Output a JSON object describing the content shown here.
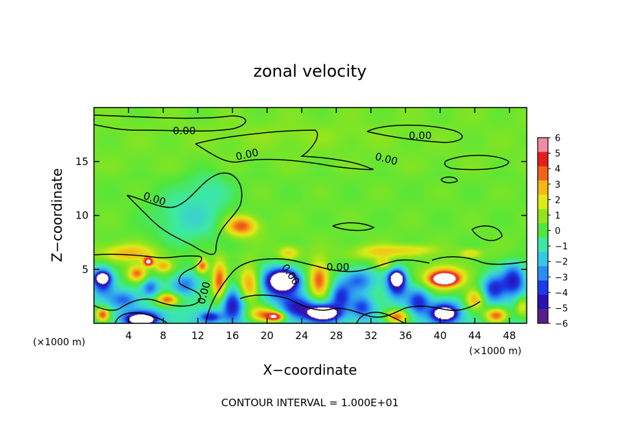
{
  "chart_data": {
    "type": "heatmap",
    "title": "zonal velocity",
    "xlabel": "X−coordinate",
    "ylabel": "Z−coordinate",
    "x_unit_left": "(×1000 m)",
    "x_unit_right": "(×1000 m)",
    "footer": "CONTOUR INTERVAL = 1.000E+01",
    "xlim": [
      0,
      50
    ],
    "ylim": [
      0,
      20
    ],
    "x_ticks": [
      4,
      8,
      12,
      16,
      20,
      24,
      28,
      32,
      36,
      40,
      44,
      48
    ],
    "y_ticks": [
      5,
      10,
      15
    ],
    "colorbar": {
      "min": -6,
      "max": 6,
      "ticks": [
        6,
        5,
        4,
        3,
        2,
        1,
        0,
        -1,
        -2,
        -3,
        -4,
        -5,
        -6
      ],
      "colors": [
        "#5a1e8c",
        "#2a12b4",
        "#1a3ce8",
        "#2a8ef0",
        "#38c6e6",
        "#3ce8a6",
        "#50e63c",
        "#8ee41e",
        "#dcea1a",
        "#f6b814",
        "#f0641a",
        "#e81e1e",
        "#f08ca0"
      ]
    },
    "contour_label": "0.00",
    "regions_note": "",
    "blobs": [
      {
        "x": 23,
        "y": 17.4,
        "rx": 14,
        "ry": 1.3,
        "v": 0.6
      },
      {
        "x": 14,
        "y": 18.6,
        "rx": 10,
        "ry": 0.8,
        "v": 0.2
      },
      {
        "x": 11,
        "y": 9.8,
        "rx": 5,
        "ry": 3.2,
        "v": -1.6
      },
      {
        "x": 13.5,
        "y": 12.5,
        "rx": 3,
        "ry": 2,
        "v": -0.8
      },
      {
        "x": 17,
        "y": 9.0,
        "rx": 2.2,
        "ry": 1.1,
        "v": 4.2
      },
      {
        "x": 4,
        "y": 6.5,
        "rx": 4,
        "ry": 1,
        "v": 2.8
      },
      {
        "x": 6.3,
        "y": 5.7,
        "rx": 0.7,
        "ry": 0.5,
        "v": 6
      },
      {
        "x": 1,
        "y": 4.0,
        "rx": 1.5,
        "ry": 1.5,
        "v": -4.6
      },
      {
        "x": 1,
        "y": 4.2,
        "rx": 0.8,
        "ry": 0.5,
        "v": -6
      },
      {
        "x": 5,
        "y": 4.6,
        "rx": 1.3,
        "ry": 0.9,
        "v": 4.5
      },
      {
        "x": 8,
        "y": 5.3,
        "rx": 1.2,
        "ry": 0.7,
        "v": 3.2
      },
      {
        "x": 6.5,
        "y": 3.3,
        "rx": 1.2,
        "ry": 1.0,
        "v": -2.8
      },
      {
        "x": 3.5,
        "y": 2.2,
        "rx": 2.0,
        "ry": 1.0,
        "v": -2.5
      },
      {
        "x": 8.5,
        "y": 2.2,
        "rx": 1.6,
        "ry": 0.7,
        "v": 5.2
      },
      {
        "x": 1,
        "y": 0.8,
        "rx": 1.0,
        "ry": 0.8,
        "v": 5.5
      },
      {
        "x": 5.5,
        "y": 0.5,
        "rx": 2.4,
        "ry": 0.8,
        "v": -5
      },
      {
        "x": 5.5,
        "y": 0.3,
        "rx": 1.4,
        "ry": 0.4,
        "v": -6
      },
      {
        "x": 10.5,
        "y": 3.6,
        "rx": 1.8,
        "ry": 1.2,
        "v": -2.6
      },
      {
        "x": 12.5,
        "y": 5.3,
        "rx": 0.8,
        "ry": 0.8,
        "v": 4.5
      },
      {
        "x": 14.5,
        "y": 3.8,
        "rx": 1.0,
        "ry": 2.2,
        "v": 4.8
      },
      {
        "x": 16,
        "y": 1.6,
        "rx": 1.5,
        "ry": 1.8,
        "v": -3.8
      },
      {
        "x": 13.5,
        "y": 0.6,
        "rx": 1.4,
        "ry": 0.6,
        "v": -3.4
      },
      {
        "x": 18,
        "y": 3.6,
        "rx": 1.4,
        "ry": 2.0,
        "v": 4.2
      },
      {
        "x": 19.5,
        "y": 0.8,
        "rx": 2.0,
        "ry": 0.9,
        "v": 4.8
      },
      {
        "x": 21.5,
        "y": 3.8,
        "rx": 2.6,
        "ry": 1.7,
        "v": -5.2
      },
      {
        "x": 22,
        "y": 4.0,
        "rx": 1.6,
        "ry": 0.9,
        "v": -6
      },
      {
        "x": 22.5,
        "y": 6.5,
        "rx": 1.4,
        "ry": 0.8,
        "v": 2.6
      },
      {
        "x": 21,
        "y": 0.6,
        "rx": 1.2,
        "ry": 0.5,
        "v": 5.8
      },
      {
        "x": 23.5,
        "y": 1.5,
        "rx": 2.2,
        "ry": 1.2,
        "v": -3.4
      },
      {
        "x": 26,
        "y": 4.0,
        "rx": 1.4,
        "ry": 2.0,
        "v": 4.8
      },
      {
        "x": 26.5,
        "y": 1.0,
        "rx": 2.4,
        "ry": 1.0,
        "v": -5.2
      },
      {
        "x": 26.5,
        "y": 0.9,
        "rx": 1.5,
        "ry": 0.5,
        "v": -6
      },
      {
        "x": 28.5,
        "y": 2.5,
        "rx": 1.4,
        "ry": 1.4,
        "v": -3.2
      },
      {
        "x": 30.5,
        "y": 4.0,
        "rx": 2.2,
        "ry": 1.3,
        "v": -3
      },
      {
        "x": 31,
        "y": 1.5,
        "rx": 1.5,
        "ry": 1.2,
        "v": -2.8
      },
      {
        "x": 33,
        "y": 6.6,
        "rx": 4,
        "ry": 0.8,
        "v": 2.2
      },
      {
        "x": 33.5,
        "y": 5.5,
        "rx": 1.2,
        "ry": 0.6,
        "v": 2.8
      },
      {
        "x": 35,
        "y": 3.8,
        "rx": 1.4,
        "ry": 1.6,
        "v": -5.2
      },
      {
        "x": 35,
        "y": 4.2,
        "rx": 0.8,
        "ry": 0.6,
        "v": -6
      },
      {
        "x": 35,
        "y": 0.6,
        "rx": 1.6,
        "ry": 0.8,
        "v": 5.2
      },
      {
        "x": 37.5,
        "y": 2.0,
        "rx": 1.5,
        "ry": 1.4,
        "v": -3.3
      },
      {
        "x": 40.5,
        "y": 4.2,
        "rx": 2.8,
        "ry": 1.3,
        "v": 5.3
      },
      {
        "x": 40.5,
        "y": 4.1,
        "rx": 1.6,
        "ry": 0.6,
        "v": 6
      },
      {
        "x": 40.5,
        "y": 1.0,
        "rx": 2.0,
        "ry": 1.2,
        "v": -4.6
      },
      {
        "x": 40.5,
        "y": 0.9,
        "rx": 1.2,
        "ry": 0.5,
        "v": -6
      },
      {
        "x": 44,
        "y": 2.2,
        "rx": 1.4,
        "ry": 1.2,
        "v": 4.3
      },
      {
        "x": 46.2,
        "y": 3.2,
        "rx": 1.6,
        "ry": 1.5,
        "v": -3.8
      },
      {
        "x": 46.5,
        "y": 0.7,
        "rx": 1.6,
        "ry": 0.9,
        "v": 5.5
      },
      {
        "x": 48.5,
        "y": 4.0,
        "rx": 1.6,
        "ry": 1.8,
        "v": -4.2
      },
      {
        "x": 49.5,
        "y": 1.5,
        "rx": 1.0,
        "ry": 1.2,
        "v": 3.3
      },
      {
        "x": 43.5,
        "y": 6.5,
        "rx": 1.5,
        "ry": 0.5,
        "v": 2.2
      },
      {
        "x": 37,
        "y": 6.8,
        "rx": 3,
        "ry": 0.6,
        "v": 1.8
      }
    ]
  }
}
